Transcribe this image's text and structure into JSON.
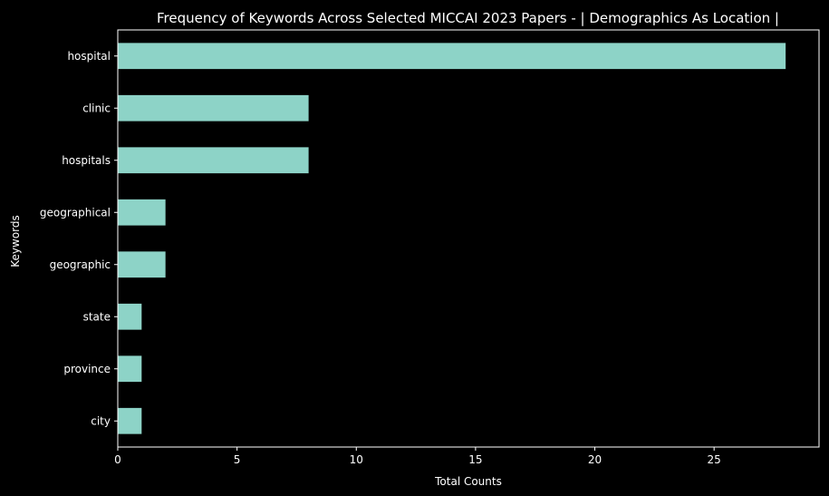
{
  "chart_data": {
    "type": "bar",
    "orientation": "horizontal",
    "title": "Frequency of Keywords Across Selected MICCAI 2023 Papers - | Demographics As Location |",
    "xlabel": "Total Counts",
    "ylabel": "Keywords",
    "categories": [
      "hospital",
      "clinic",
      "hospitals",
      "geographical",
      "geographic",
      "state",
      "province",
      "city"
    ],
    "values": [
      28,
      8,
      8,
      2,
      2,
      1,
      1,
      1
    ],
    "xlim": [
      0,
      29.4
    ],
    "xticks": [
      0,
      5,
      10,
      15,
      20,
      25
    ],
    "grid": false,
    "legend": "none",
    "colors": {
      "background": "#000000",
      "bar": "#8dd3c7",
      "text": "#ffffff",
      "axis": "#ffffff"
    }
  }
}
